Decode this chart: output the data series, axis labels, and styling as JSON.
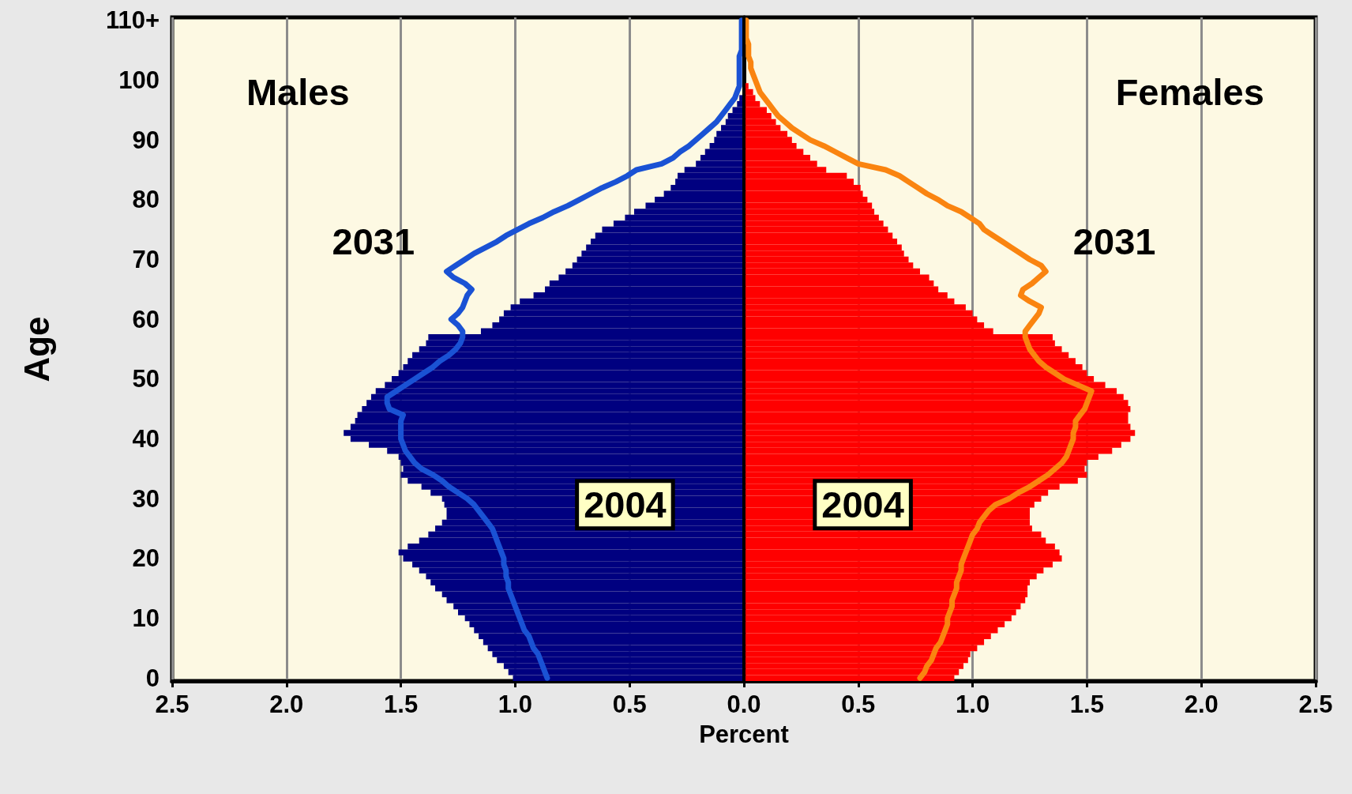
{
  "chart_data": {
    "type": "bar",
    "orientation": "horizontal",
    "xlabel": "Percent",
    "ylabel": "Age",
    "annotations": [
      "Males",
      "Females"
    ],
    "categories": [
      "110+",
      null,
      null,
      null,
      null,
      null,
      null,
      null,
      null,
      null,
      "100",
      null,
      null,
      null,
      null,
      null,
      null,
      null,
      null,
      null,
      "90",
      null,
      null,
      null,
      null,
      null,
      null,
      null,
      null,
      null,
      "80",
      null,
      null,
      null,
      null,
      null,
      null,
      null,
      null,
      null,
      "70",
      null,
      null,
      null,
      null,
      null,
      null,
      null,
      null,
      null,
      "60",
      null,
      null,
      null,
      null,
      null,
      null,
      null,
      null,
      null,
      "50",
      null,
      null,
      null,
      null,
      null,
      null,
      null,
      null,
      null,
      "40",
      null,
      null,
      null,
      null,
      null,
      null,
      null,
      null,
      null,
      "30",
      null,
      null,
      null,
      null,
      null,
      null,
      null,
      null,
      null,
      "20",
      null,
      null,
      null,
      null,
      null,
      null,
      null,
      null,
      null,
      "10",
      null,
      null,
      null,
      null,
      null,
      null,
      null,
      null,
      null,
      "0"
    ],
    "xlim": [
      -2.5,
      2.5
    ],
    "xticks": [
      {
        "value": -2.5,
        "label": "2.5"
      },
      {
        "value": -2,
        "label": "2.0"
      },
      {
        "value": -1.5,
        "label": "1.5"
      },
      {
        "value": -1,
        "label": "1.0"
      },
      {
        "value": -0.5,
        "label": "0.5"
      },
      {
        "value": 0,
        "label": "0.0"
      },
      0.5,
      {
        "value": 1,
        "label": "1.0"
      },
      1.5,
      {
        "value": 2,
        "label": "2.0"
      },
      2.5
    ],
    "grid": "x",
    "legend": false,
    "stacked": true,
    "ref_lines": [
      {
        "axis": "x",
        "value": 0,
        "color": "#000000"
      }
    ],
    "series": [
      {
        "name": "2004",
        "color": "#000080",
        "values": [
          null,
          null,
          null,
          null,
          null,
          null,
          null,
          null,
          null,
          null,
          null,
          null,
          null,
          -0.02,
          -0.03,
          -0.05,
          -0.07,
          -0.08,
          -0.1,
          -0.12,
          -0.13,
          -0.15,
          -0.17,
          -0.19,
          -0.21,
          -0.26,
          -0.29,
          -0.3,
          -0.32,
          -0.35,
          -0.39,
          -0.43,
          -0.48,
          -0.52,
          -0.57,
          -0.62,
          -0.65,
          -0.67,
          -0.69,
          -0.71,
          -0.73,
          -0.75,
          -0.78,
          -0.81,
          -0.85,
          -0.87,
          -0.92,
          -0.98,
          -1.02,
          -1.05,
          -1.07,
          -1.1,
          -1.15,
          -1.38,
          -1.39,
          -1.42,
          -1.45,
          -1.47,
          -1.49,
          -1.51,
          -1.54,
          -1.57,
          -1.61,
          -1.63,
          -1.65,
          -1.67,
          -1.69,
          -1.7,
          -1.72,
          -1.75,
          -1.72,
          -1.64,
          -1.56,
          -1.51,
          -1.5,
          -1.49,
          -1.5,
          -1.47,
          -1.41,
          -1.37,
          -1.32,
          -1.31,
          -1.3,
          -1.3,
          -1.32,
          -1.35,
          -1.38,
          -1.42,
          -1.47,
          -1.51,
          -1.49,
          -1.45,
          -1.42,
          -1.39,
          -1.37,
          -1.35,
          -1.32,
          -1.3,
          -1.27,
          -1.25,
          -1.22,
          -1.2,
          -1.18,
          -1.16,
          -1.14,
          -1.12,
          -1.1,
          -1.08,
          -1.05,
          -1.03,
          -1.01
        ]
      },
      {
        "name": "2004",
        "color": "#ff0000",
        "values": [
          null,
          null,
          null,
          null,
          null,
          null,
          null,
          null,
          null,
          null,
          null,
          0.02,
          0.04,
          0.05,
          0.07,
          0.1,
          0.12,
          0.14,
          0.16,
          0.19,
          0.21,
          0.23,
          0.26,
          0.29,
          0.32,
          0.36,
          0.45,
          0.48,
          0.51,
          0.52,
          0.54,
          0.56,
          0.57,
          0.59,
          0.61,
          0.63,
          0.65,
          0.67,
          0.69,
          0.7,
          0.72,
          0.74,
          0.77,
          0.81,
          0.83,
          0.85,
          0.89,
          0.92,
          0.97,
          1.0,
          1.02,
          1.05,
          1.09,
          1.35,
          1.36,
          1.39,
          1.42,
          1.45,
          1.48,
          1.5,
          1.53,
          1.58,
          1.63,
          1.66,
          1.68,
          1.69,
          1.68,
          1.68,
          1.69,
          1.71,
          1.69,
          1.65,
          1.61,
          1.55,
          1.5,
          1.49,
          1.5,
          1.46,
          1.38,
          1.33,
          1.3,
          1.27,
          1.25,
          1.25,
          1.25,
          1.26,
          1.3,
          1.32,
          1.36,
          1.38,
          1.39,
          1.35,
          1.31,
          1.28,
          1.25,
          1.24,
          1.24,
          1.23,
          1.21,
          1.19,
          1.17,
          1.14,
          1.11,
          1.08,
          1.05,
          1.02,
          0.99,
          0.98,
          0.96,
          0.94,
          0.92
        ]
      },
      {
        "name": "2031",
        "type": "line",
        "color": "#1a52d4",
        "values": [
          -0.01,
          -0.01,
          -0.01,
          -0.01,
          -0.01,
          -0.01,
          -0.02,
          -0.02,
          -0.02,
          -0.02,
          -0.02,
          -0.02,
          -0.03,
          -0.04,
          -0.06,
          -0.08,
          -0.1,
          -0.12,
          -0.15,
          -0.18,
          -0.21,
          -0.24,
          -0.28,
          -0.31,
          -0.36,
          -0.47,
          -0.51,
          -0.56,
          -0.62,
          -0.67,
          -0.72,
          -0.77,
          -0.83,
          -0.88,
          -0.94,
          -0.99,
          -1.04,
          -1.08,
          -1.13,
          -1.18,
          -1.22,
          -1.26,
          -1.3,
          -1.27,
          -1.22,
          -1.19,
          -1.21,
          -1.22,
          -1.23,
          -1.25,
          -1.28,
          -1.25,
          -1.23,
          -1.23,
          -1.24,
          -1.26,
          -1.29,
          -1.33,
          -1.36,
          -1.4,
          -1.44,
          -1.48,
          -1.52,
          -1.56,
          -1.56,
          -1.55,
          -1.49,
          -1.5,
          -1.5,
          -1.5,
          -1.5,
          -1.49,
          -1.48,
          -1.46,
          -1.44,
          -1.41,
          -1.36,
          -1.32,
          -1.29,
          -1.25,
          -1.21,
          -1.18,
          -1.16,
          -1.14,
          -1.12,
          -1.1,
          -1.09,
          -1.08,
          -1.07,
          -1.06,
          -1.05,
          -1.05,
          -1.04,
          -1.04,
          -1.03,
          -1.03,
          -1.02,
          -1.01,
          -1.0,
          -0.99,
          -0.98,
          -0.97,
          -0.96,
          -0.94,
          -0.93,
          -0.92,
          -0.9,
          -0.89,
          -0.88,
          -0.87,
          -0.86
        ]
      },
      {
        "name": "2031",
        "type": "line",
        "color": "#fa8410",
        "values": [
          0.01,
          0.01,
          0.01,
          0.01,
          0.02,
          0.02,
          0.02,
          0.03,
          0.03,
          0.04,
          0.05,
          0.06,
          0.07,
          0.09,
          0.11,
          0.13,
          0.15,
          0.18,
          0.21,
          0.25,
          0.29,
          0.35,
          0.4,
          0.45,
          0.5,
          0.62,
          0.68,
          0.72,
          0.76,
          0.8,
          0.85,
          0.89,
          0.95,
          0.99,
          1.03,
          1.05,
          1.09,
          1.13,
          1.17,
          1.21,
          1.25,
          1.3,
          1.32,
          1.29,
          1.26,
          1.22,
          1.21,
          1.25,
          1.3,
          1.29,
          1.27,
          1.25,
          1.23,
          1.23,
          1.24,
          1.25,
          1.27,
          1.29,
          1.32,
          1.36,
          1.4,
          1.46,
          1.52,
          1.51,
          1.5,
          1.49,
          1.47,
          1.45,
          1.45,
          1.44,
          1.44,
          1.43,
          1.42,
          1.41,
          1.39,
          1.36,
          1.33,
          1.29,
          1.25,
          1.2,
          1.16,
          1.1,
          1.07,
          1.05,
          1.03,
          1.02,
          1.0,
          0.99,
          0.98,
          0.97,
          0.96,
          0.95,
          0.95,
          0.94,
          0.93,
          0.93,
          0.92,
          0.91,
          0.91,
          0.9,
          0.89,
          0.89,
          0.88,
          0.87,
          0.86,
          0.84,
          0.83,
          0.82,
          0.8,
          0.79,
          0.77
        ]
      }
    ]
  }
}
